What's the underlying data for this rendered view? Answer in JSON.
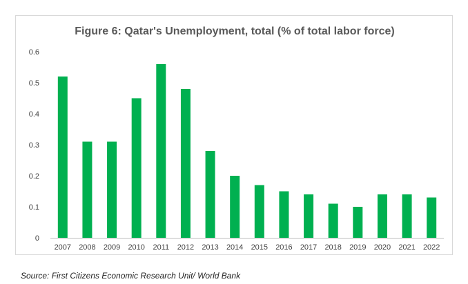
{
  "chart_data": {
    "type": "bar",
    "title": "Figure 6: Qatar's Unemployment, total (% of total labor force)",
    "categories": [
      "2007",
      "2008",
      "2009",
      "2010",
      "2011",
      "2012",
      "2013",
      "2014",
      "2015",
      "2016",
      "2017",
      "2018",
      "2019",
      "2020",
      "2021",
      "2022"
    ],
    "values": [
      0.52,
      0.31,
      0.31,
      0.45,
      0.56,
      0.48,
      0.28,
      0.2,
      0.17,
      0.15,
      0.14,
      0.11,
      0.1,
      0.14,
      0.14,
      0.13
    ],
    "ylim": [
      0,
      0.6
    ],
    "yticks": [
      "0",
      "0.1",
      "0.2",
      "0.3",
      "0.4",
      "0.5",
      "0.6"
    ],
    "xlabel": "",
    "ylabel": "",
    "grid": false,
    "legend": "none",
    "bar_color": "#00b050",
    "axis_color": "#bfbfbf"
  },
  "source_note": "Source: First Citizens Economic Research Unit/ World Bank"
}
